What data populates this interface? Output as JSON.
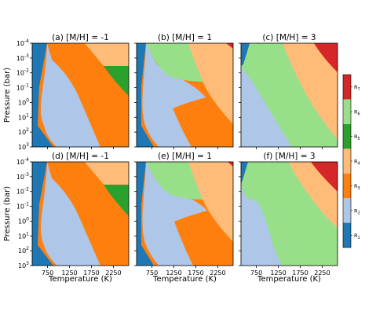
{
  "chart_data": {
    "type": "heatmap",
    "panels": [
      {
        "title": "(a) [M/H] = -1",
        "metallicity": -1,
        "row": "top"
      },
      {
        "title": "(b) [M/H] = 1",
        "metallicity": 1,
        "row": "top"
      },
      {
        "title": "(c) [M/H] = 3",
        "metallicity": 3,
        "row": "top"
      },
      {
        "title": "(d) [M/H] = -1",
        "metallicity": -1,
        "row": "bottom"
      },
      {
        "title": "(e) [M/H] = 1",
        "metallicity": 1,
        "row": "bottom"
      },
      {
        "title": "(f) [M/H] = 3",
        "metallicity": 3,
        "row": "bottom"
      }
    ],
    "xlabel": "Temperature (K)",
    "ylabel": "Pressure (bar)",
    "xlim": [
      400,
      2600
    ],
    "xticks": [
      "750",
      "1250",
      "1750",
      "2250"
    ],
    "xtick_values": [
      750,
      1250,
      1750,
      2250
    ],
    "ylim_log10": [
      -4,
      3
    ],
    "y_inverted": true,
    "ytick_mantissa": "10",
    "yticks_exponents": [
      "-4",
      "-3",
      "-2",
      "-1",
      "0",
      "1",
      "2",
      "3"
    ],
    "colorbar": {
      "classes": [
        {
          "base": "R",
          "sub": "1",
          "color": "#1f77b4"
        },
        {
          "base": "R",
          "sub": "2",
          "color": "#aec7e8"
        },
        {
          "base": "R",
          "sub": "3",
          "color": "#ff7f0e"
        },
        {
          "base": "R",
          "sub": "4",
          "color": "#ffbb78"
        },
        {
          "base": "R",
          "sub": "5",
          "color": "#2ca02c"
        },
        {
          "base": "R",
          "sub": "6",
          "color": "#98df8a"
        },
        {
          "base": "R",
          "sub": "7",
          "color": "#d62728"
        }
      ]
    }
  }
}
